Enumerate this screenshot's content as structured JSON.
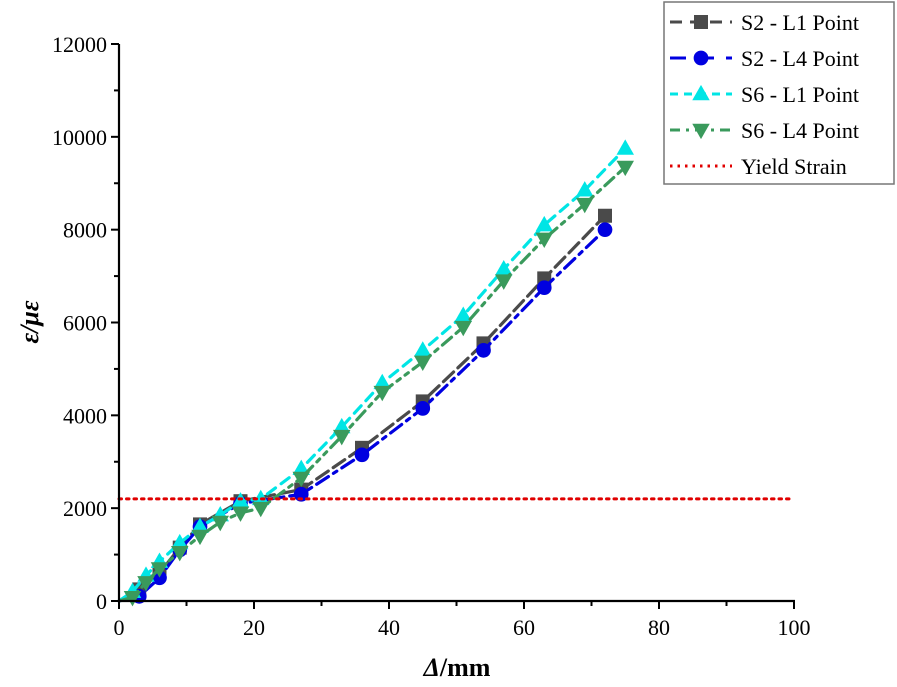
{
  "chart_data": {
    "type": "line",
    "title": "",
    "xlabel": "Δ/mm",
    "ylabel": "ε/με",
    "xlim": [
      0,
      100
    ],
    "ylim": [
      0,
      12000
    ],
    "xticks": [
      0,
      20,
      40,
      60,
      80,
      100
    ],
    "yticks": [
      0,
      2000,
      4000,
      6000,
      8000,
      10000,
      12000
    ],
    "grid": false,
    "legend_position": "upper right",
    "series": [
      {
        "name": "S2 - L1 Point",
        "color": "#4a4a4a",
        "marker": "square",
        "line_style": "dash",
        "x": [
          0,
          3,
          6,
          9,
          12,
          18,
          27,
          36,
          45,
          54,
          63,
          72
        ],
        "y": [
          0,
          250,
          600,
          1150,
          1650,
          2150,
          2400,
          3300,
          4300,
          5550,
          6950,
          8300
        ]
      },
      {
        "name": "S2 - L4 Point",
        "color": "#0000e0",
        "marker": "circle",
        "line_style": "dashdot",
        "x": [
          0,
          3,
          6,
          9,
          12,
          18,
          27,
          36,
          45,
          54,
          63,
          72
        ],
        "y": [
          0,
          100,
          500,
          1100,
          1600,
          2100,
          2300,
          3150,
          4150,
          5400,
          6750,
          8000
        ]
      },
      {
        "name": "S6 - L1 Point",
        "color": "#00e5e5",
        "marker": "triangle-up",
        "line_style": "dashed",
        "x": [
          0,
          2,
          4,
          6,
          9,
          12,
          15,
          18,
          21,
          27,
          33,
          39,
          45,
          51,
          57,
          63,
          69,
          75
        ],
        "y": [
          0,
          200,
          550,
          850,
          1250,
          1600,
          1850,
          2150,
          2200,
          2850,
          3750,
          4700,
          5400,
          6150,
          7150,
          8100,
          8850,
          9750
        ]
      },
      {
        "name": "S6 - L4 Point",
        "color": "#3a9a5c",
        "marker": "triangle-down",
        "line_style": "dashdotdot",
        "x": [
          0,
          2,
          4,
          6,
          9,
          12,
          15,
          18,
          21,
          27,
          33,
          39,
          45,
          51,
          57,
          63,
          69,
          75
        ],
        "y": [
          0,
          80,
          400,
          700,
          1050,
          1400,
          1700,
          1900,
          2000,
          2650,
          3550,
          4500,
          5150,
          5900,
          6900,
          7800,
          8550,
          9350
        ]
      },
      {
        "name": "Yield Strain",
        "color": "#e00000",
        "marker": "none",
        "line_style": "dotted",
        "x": [
          0,
          100
        ],
        "y": [
          2200,
          2200
        ]
      }
    ]
  },
  "axes": {
    "x_title_symbol": "Δ",
    "x_title_unit": "/mm",
    "y_title": "ε/με",
    "x_tick_labels": [
      "0",
      "20",
      "40",
      "60",
      "80",
      "100"
    ],
    "y_tick_labels": [
      "0",
      "2000",
      "4000",
      "6000",
      "8000",
      "10000",
      "12000"
    ]
  },
  "legend": {
    "items": [
      {
        "label": "S2 - L1 Point"
      },
      {
        "label": "S2 - L4 Point"
      },
      {
        "label": "S6 - L1 Point"
      },
      {
        "label": "S6 - L4 Point"
      },
      {
        "label": "Yield Strain"
      }
    ]
  }
}
